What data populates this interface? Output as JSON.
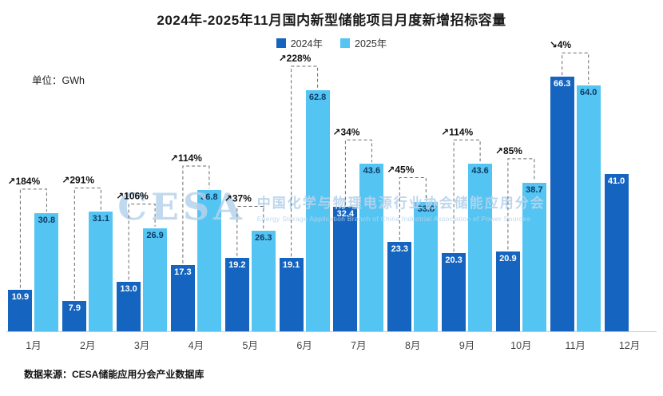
{
  "title": "2024年-2025年11月国内新型储能项目月度新增招标容量",
  "unit_label": "单位：GWh",
  "source_label": "数据来源：CESA储能应用分会产业数据库",
  "legend": {
    "items": [
      {
        "label": "2024年",
        "color": "#1565c0"
      },
      {
        "label": "2025年",
        "color": "#54c5f2"
      }
    ]
  },
  "watermark": {
    "logo": "CESA",
    "line1": "中国化学与物理电源行业协会储能应用分会",
    "line2": "Energy Storage Application Branch of China Industrial Association of Power Sources"
  },
  "chart_data": {
    "type": "bar",
    "title": "2024年-2025年11月国内新型储能项目月度新增招标容量",
    "xlabel": "",
    "ylabel": "GWh",
    "ylim": [
      0,
      68
    ],
    "grid": false,
    "legend_position": "top",
    "categories": [
      "1月",
      "2月",
      "3月",
      "4月",
      "5月",
      "6月",
      "7月",
      "8月",
      "9月",
      "10月",
      "11月",
      "12月"
    ],
    "series": [
      {
        "name": "2024年",
        "color": "#1565c0",
        "label_color": "#ffffff",
        "values": [
          10.9,
          7.9,
          13.0,
          17.3,
          19.2,
          19.1,
          32.4,
          23.3,
          20.3,
          20.9,
          66.3,
          41.0
        ]
      },
      {
        "name": "2025年",
        "color": "#54c5f2",
        "label_color": "#0e3a66",
        "values": [
          30.8,
          31.1,
          26.9,
          36.8,
          26.3,
          62.8,
          43.6,
          33.8,
          43.6,
          38.7,
          64.0,
          null
        ]
      }
    ],
    "growth_annotations": [
      "↗184%",
      "↗291%",
      "↗106%",
      "↗114%",
      "↗37%",
      "↗228%",
      "↗34%",
      "↗45%",
      "↗114%",
      "↗85%",
      "↘4%",
      null
    ]
  }
}
